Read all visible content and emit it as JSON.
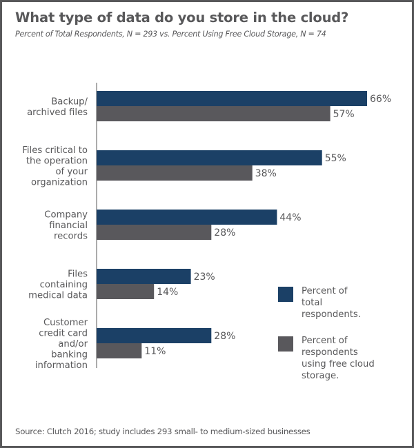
{
  "chart_data": {
    "type": "bar",
    "orientation": "horizontal",
    "title": "What type of data do you store in the cloud?",
    "subtitle": "Percent of Total Respondents, N = 293 vs. Percent Using Free Cloud Storage, N = 74",
    "categories": [
      [
        "Backup/",
        "archived files"
      ],
      [
        "Files critical to",
        "the operation",
        "of your",
        "organization"
      ],
      [
        "Company",
        "financial",
        "records"
      ],
      [
        "Files",
        "containing",
        "medical data"
      ],
      [
        "Customer",
        "credit card",
        "and/or",
        "banking",
        "information"
      ]
    ],
    "series": [
      {
        "name": "Percent of total respondents.",
        "legend_lines": [
          "Percent of",
          "total",
          "respondents."
        ],
        "color": "#1b4066",
        "values": [
          66,
          55,
          44,
          23,
          28
        ]
      },
      {
        "name": "Percent of respondents using free cloud storage.",
        "legend_lines": [
          "Percent of",
          "respondents",
          "using free cloud",
          "storage."
        ],
        "color": "#59585c",
        "values": [
          57,
          38,
          28,
          14,
          11
        ]
      }
    ],
    "value_suffix": "%",
    "xlim": [
      0,
      66
    ],
    "xlabel": "",
    "ylabel": "",
    "grid": false,
    "legend": "bottom-right",
    "source": "Source: Clutch 2016; study includes 293 small- to medium-sized businesses"
  }
}
